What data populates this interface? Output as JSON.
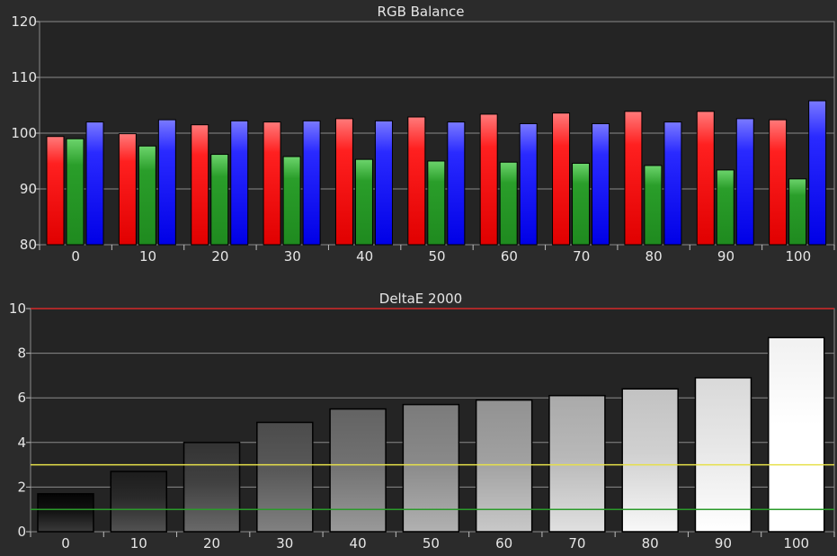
{
  "chart_data": [
    {
      "type": "bar",
      "title": "RGB Balance",
      "categories": [
        "0",
        "10",
        "20",
        "30",
        "40",
        "50",
        "60",
        "70",
        "80",
        "90",
        "100"
      ],
      "series": [
        {
          "color": "#ff2b2b",
          "values": [
            99.4,
            99.9,
            101.5,
            102.0,
            102.6,
            102.9,
            103.4,
            103.6,
            103.9,
            103.9,
            102.4
          ]
        },
        {
          "color": "#2faa2f",
          "values": [
            99.0,
            97.7,
            96.2,
            95.8,
            95.3,
            95.0,
            94.8,
            94.6,
            94.2,
            93.4,
            91.8
          ]
        },
        {
          "color": "#3b3bff",
          "values": [
            102.0,
            102.4,
            102.2,
            102.2,
            102.2,
            102.0,
            101.7,
            101.7,
            102.0,
            102.6,
            105.8
          ]
        }
      ],
      "ylim": [
        80,
        120
      ],
      "yticks": [
        "80",
        "90",
        "100",
        "110",
        "120"
      ],
      "grid": true
    },
    {
      "type": "bar",
      "title": "DeltaE 2000",
      "categories": [
        "0",
        "10",
        "20",
        "30",
        "40",
        "50",
        "60",
        "70",
        "80",
        "90",
        "100"
      ],
      "values": [
        1.7,
        2.7,
        4.0,
        4.9,
        5.5,
        5.7,
        5.9,
        6.1,
        6.4,
        6.9,
        8.7
      ],
      "ylim": [
        0,
        10
      ],
      "yticks": [
        "0",
        "2",
        "4",
        "6",
        "8",
        "10"
      ],
      "reference_lines": [
        {
          "value": 10,
          "color": "#d42a2a"
        },
        {
          "value": 3,
          "color": "#e6e04a"
        },
        {
          "value": 1,
          "color": "#2a9a2a"
        }
      ],
      "grid": true
    }
  ]
}
